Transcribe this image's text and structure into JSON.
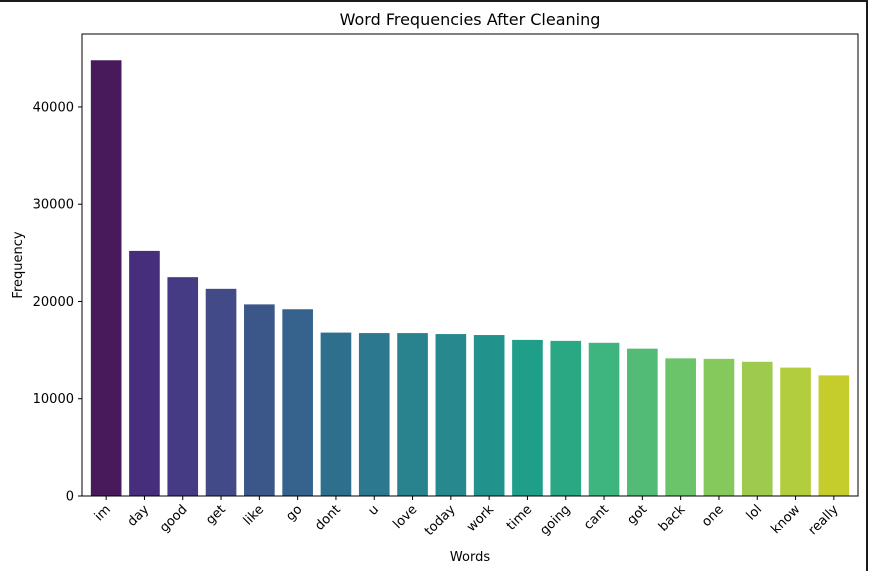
{
  "chart_data": {
    "type": "bar",
    "title": "Word Frequencies After Cleaning",
    "xlabel": "Words",
    "ylabel": "Frequency",
    "ylim": [
      0,
      47500
    ],
    "yticks": [
      "0",
      "10000",
      "20000",
      "30000",
      "40000"
    ],
    "yticks_values": [
      0,
      10000,
      20000,
      30000,
      40000
    ],
    "categories": [
      "im",
      "day",
      "good",
      "get",
      "like",
      "go",
      "dont",
      "u",
      "love",
      "today",
      "work",
      "time",
      "going",
      "cant",
      "got",
      "back",
      "one",
      "lol",
      "know",
      "really"
    ],
    "values": [
      44800,
      25200,
      22500,
      21300,
      19700,
      19200,
      16800,
      16750,
      16750,
      16650,
      16550,
      16050,
      15950,
      15750,
      15150,
      14150,
      14100,
      13800,
      13200,
      12400
    ],
    "colors": [
      "#481a5c",
      "#472e7c",
      "#443b84",
      "#424a87",
      "#3b578a",
      "#36638d",
      "#2f6f8e",
      "#2c788e",
      "#29838e",
      "#25898d",
      "#22928c",
      "#1f9e89",
      "#2aa884",
      "#3eb47e",
      "#52bb75",
      "#6bc36a",
      "#85c95c",
      "#9ecb4e",
      "#b2cd3d",
      "#c5cd2d"
    ],
    "grid": false,
    "legend": "none"
  }
}
